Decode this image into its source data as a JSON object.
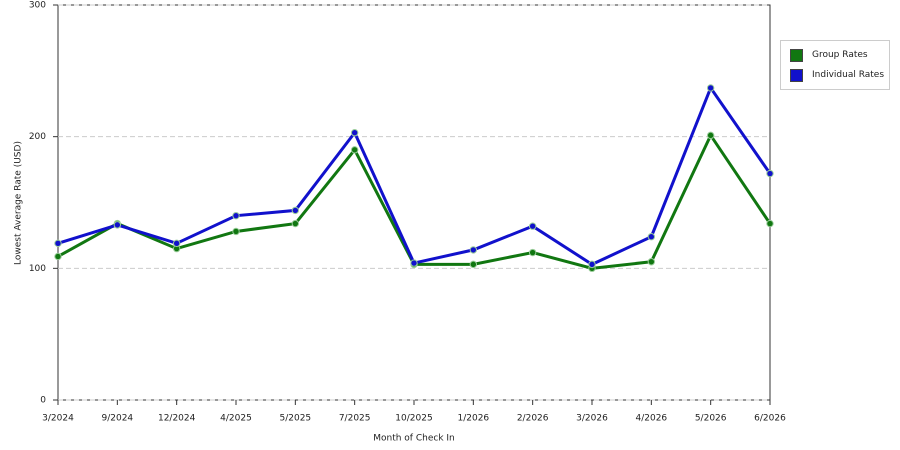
{
  "chart_data": {
    "type": "line",
    "categories": [
      "3/2024",
      "9/2024",
      "12/2024",
      "4/2025",
      "5/2025",
      "7/2025",
      "10/2025",
      "1/2026",
      "2/2026",
      "3/2026",
      "4/2026",
      "5/2026",
      "6/2026"
    ],
    "series": [
      {
        "name": "Group Rates",
        "color": "#117711",
        "values": [
          109,
          134,
          115,
          128,
          134,
          190,
          103,
          103,
          112,
          100,
          105,
          201,
          134
        ]
      },
      {
        "name": "Individual Rates",
        "color": "#1111cc",
        "values": [
          119,
          133,
          119,
          140,
          144,
          203,
          104,
          114,
          132,
          103,
          124,
          237,
          172
        ]
      }
    ],
    "ylim": [
      0,
      300
    ],
    "yticks": [
      0,
      100,
      200,
      300
    ],
    "grid": true,
    "x_label": "Month of Check In",
    "y_label": "Lowest Average Rate (USD)",
    "legend": "right"
  }
}
